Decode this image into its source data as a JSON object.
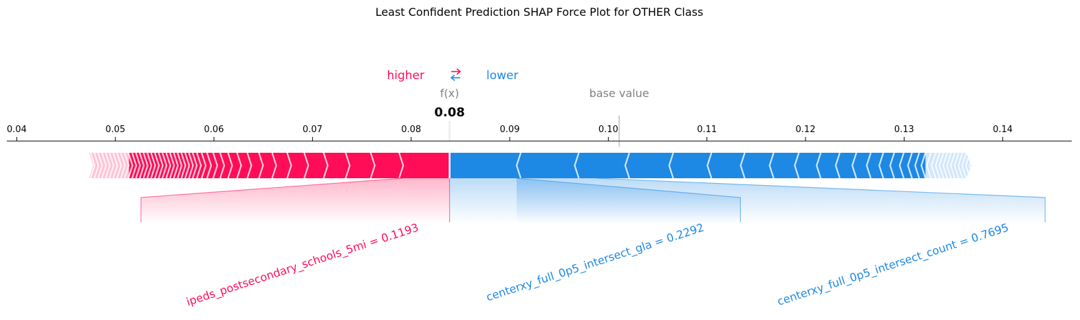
{
  "title": "Least Confident Prediction SHAP Force Plot for OTHER Class",
  "legend": {
    "higher": "higher",
    "lower": "lower",
    "arrows": "⇄"
  },
  "labels": {
    "fx": "f(x)",
    "base_value": "base value"
  },
  "colors": {
    "positive": "#ff0d57",
    "positive_light": "#ffc3d5",
    "negative": "#1e88e5",
    "negative_light": "#d1e6fa",
    "grey": "#808080"
  },
  "chart_data": {
    "type": "force",
    "title": "Least Confident Prediction SHAP Force Plot for OTHER Class",
    "xlim": [
      0.039,
      0.147
    ],
    "ticks": [
      0.04,
      0.05,
      0.06,
      0.07,
      0.08,
      0.09,
      0.1,
      0.11,
      0.12,
      0.13,
      0.14
    ],
    "tick_labels": [
      "0.04",
      "0.05",
      "0.06",
      "0.07",
      "0.08",
      "0.09",
      "0.10",
      "0.11",
      "0.12",
      "0.13",
      "0.14"
    ],
    "fx": 0.0839,
    "fx_label": "0.08",
    "base_value": 0.1011,
    "positive_range": [
      0.0479,
      0.0839
    ],
    "negative_range": [
      0.0839,
      0.1367
    ],
    "annotated_features": [
      {
        "text": "ipeds_postsecondary_schools_5mi = 0.1193",
        "sign": "positive",
        "start": 0.0792,
        "end": 0.0839,
        "label_at": 0.0526
      },
      {
        "text": "centerxy_full_0p5_intersect_gla = 0.2292",
        "sign": "negative",
        "start": 0.0839,
        "end": 0.0907,
        "label_at": 0.1134
      },
      {
        "text": "centerxy_full_0p5_intersect_count = 0.7695",
        "sign": "negative",
        "start": 0.0907,
        "end": 0.0988,
        "label_at": 0.1443
      }
    ]
  }
}
